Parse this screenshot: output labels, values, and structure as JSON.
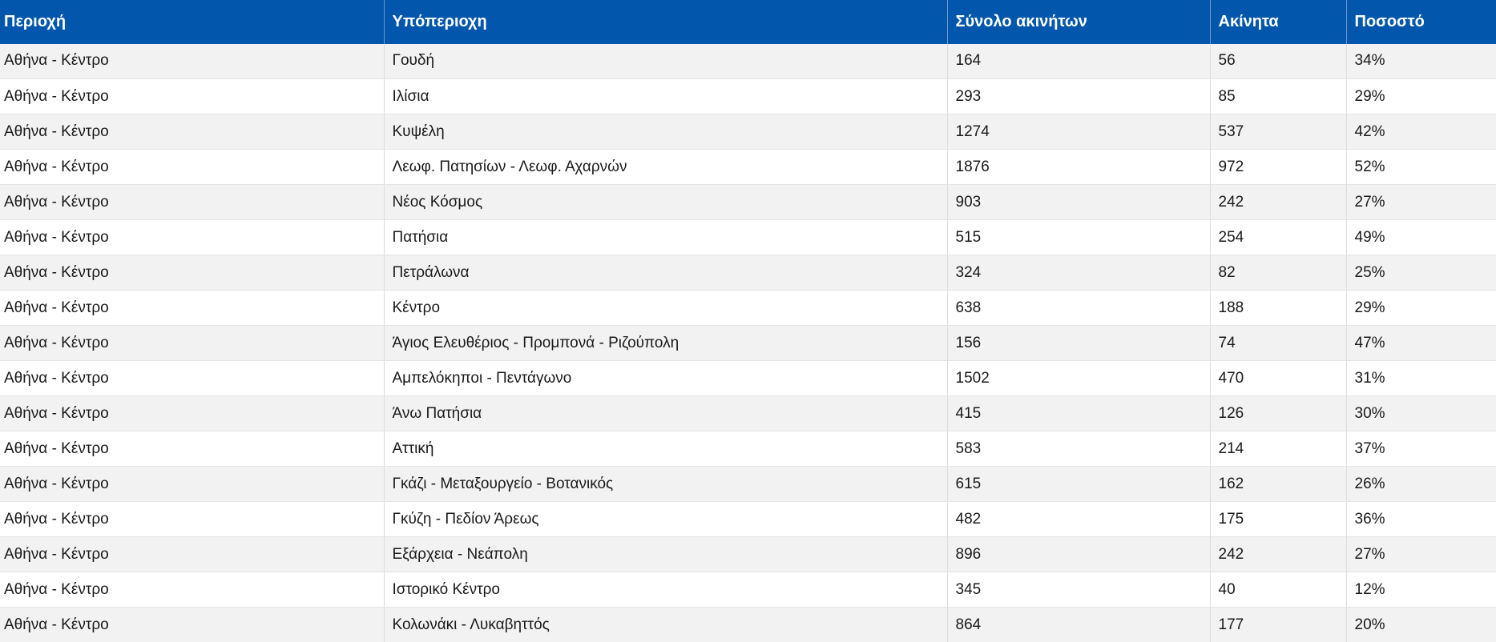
{
  "table": {
    "headers": [
      "Περιοχή",
      "Υπόπεριοχη",
      "Σύνολο ακινήτων",
      "Ακίνητα",
      "Ποσοστό"
    ],
    "rows": [
      [
        "Αθήνα - Κέντρο",
        "Γουδή",
        "164",
        "56",
        "34%"
      ],
      [
        "Αθήνα - Κέντρο",
        "Ιλίσια",
        "293",
        "85",
        "29%"
      ],
      [
        "Αθήνα - Κέντρο",
        "Κυψέλη",
        "1274",
        "537",
        "42%"
      ],
      [
        "Αθήνα - Κέντρο",
        "Λεωφ. Πατησίων - Λεωφ. Αχαρνών",
        "1876",
        "972",
        "52%"
      ],
      [
        "Αθήνα - Κέντρο",
        "Νέος Κόσμος",
        "903",
        "242",
        "27%"
      ],
      [
        "Αθήνα - Κέντρο",
        "Πατήσια",
        "515",
        "254",
        "49%"
      ],
      [
        "Αθήνα - Κέντρο",
        "Πετράλωνα",
        "324",
        "82",
        "25%"
      ],
      [
        "Αθήνα - Κέντρο",
        "Κέντρο",
        "638",
        "188",
        "29%"
      ],
      [
        "Αθήνα - Κέντρο",
        "Άγιος Ελευθέριος - Προμπονά - Ριζούπολη",
        "156",
        "74",
        "47%"
      ],
      [
        "Αθήνα - Κέντρο",
        "Αμπελόκηποι - Πεντάγωνο",
        "1502",
        "470",
        "31%"
      ],
      [
        "Αθήνα - Κέντρο",
        "Άνω Πατήσια",
        "415",
        "126",
        "30%"
      ],
      [
        "Αθήνα - Κέντρο",
        "Αττική",
        "583",
        "214",
        "37%"
      ],
      [
        "Αθήνα - Κέντρο",
        "Γκάζι - Μεταξουργείο - Βοτανικός",
        "615",
        "162",
        "26%"
      ],
      [
        "Αθήνα - Κέντρο",
        "Γκύζη - Πεδίον Άρεως",
        "482",
        "175",
        "36%"
      ],
      [
        "Αθήνα - Κέντρο",
        "Εξάρχεια - Νεάπολη",
        "896",
        "242",
        "27%"
      ],
      [
        "Αθήνα - Κέντρο",
        "Ιστορικό Κέντρο",
        "345",
        "40",
        "12%"
      ],
      [
        "Αθήνα - Κέντρο",
        "Κολωνάκι - Λυκαβηττός",
        "864",
        "177",
        "20%"
      ]
    ]
  },
  "colors": {
    "header_bg": "#0257ad",
    "header_text": "#ffffff",
    "row_odd": "#f2f2f2",
    "row_even": "#ffffff"
  }
}
